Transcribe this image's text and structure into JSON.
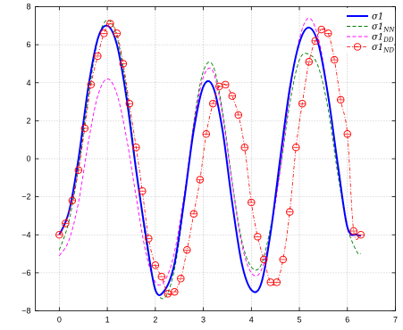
{
  "chart_data": {
    "type": "line",
    "xlim": [
      -0.5,
      7
    ],
    "ylim": [
      -8,
      8
    ],
    "x_ticks": [
      "0",
      "1",
      "2",
      "3",
      "4",
      "5",
      "6",
      "7"
    ],
    "y_ticks": [
      "-8",
      "-6",
      "-4",
      "-2",
      "0",
      "2",
      "4",
      "6",
      "8"
    ],
    "grid": true,
    "legend_position": "top-right",
    "series": [
      {
        "name_base": "σ1",
        "name_sub": "",
        "color": "#0000ff",
        "style": "solid",
        "x": [
          0,
          0.2,
          0.4,
          0.6,
          0.8,
          1.0,
          1.2,
          1.4,
          1.6,
          1.8,
          2.0,
          2.2,
          2.4,
          2.6,
          2.8,
          3.0,
          3.2,
          3.4,
          3.6,
          3.8,
          4.0,
          4.2,
          4.4,
          4.6,
          4.8,
          5.0,
          5.2,
          5.4,
          5.6,
          5.8,
          6.0,
          6.2,
          6.28
        ],
        "y": [
          -4.0,
          -2.8,
          0.0,
          3.7,
          6.3,
          7.0,
          6.0,
          3.2,
          -0.6,
          -4.0,
          -6.9,
          -6.9,
          -5.5,
          -2.2,
          1.5,
          3.8,
          3.8,
          1.5,
          -2.3,
          -5.5,
          -6.9,
          -6.6,
          -3.9,
          0.0,
          3.7,
          6.1,
          6.9,
          6.0,
          3.3,
          -0.3,
          -3.6,
          -4.0,
          -4.05
        ]
      },
      {
        "name_base": "σ1",
        "name_sub": "NN",
        "color": "#007f00",
        "style": "dashed",
        "x": [
          0,
          0.2,
          0.4,
          0.6,
          0.8,
          1.0,
          1.2,
          1.4,
          1.6,
          1.8,
          2.0,
          2.2,
          2.4,
          2.6,
          2.8,
          3.0,
          3.2,
          3.4,
          3.6,
          3.8,
          4.0,
          4.2,
          4.4,
          4.6,
          4.8,
          5.0,
          5.2,
          5.4,
          5.6,
          5.8,
          6.0,
          6.2,
          6.28
        ],
        "y": [
          -4.8,
          -3.3,
          -0.5,
          3.2,
          6.2,
          7.3,
          6.4,
          3.6,
          -0.4,
          -4.3,
          -6.8,
          -7.3,
          -5.8,
          -2.4,
          1.9,
          4.6,
          4.9,
          2.5,
          -1.2,
          -4.3,
          -5.7,
          -5.6,
          -3.6,
          -0.6,
          2.9,
          5.2,
          5.5,
          4.8,
          2.6,
          -0.8,
          -3.6,
          -4.9,
          -5.0
        ]
      },
      {
        "name_base": "σ1",
        "name_sub": "DD",
        "color": "#ff00ff",
        "style": "dashed",
        "x": [
          0,
          0.2,
          0.4,
          0.6,
          0.8,
          1.0,
          1.2,
          1.4,
          1.6,
          1.8,
          2.0,
          2.2,
          2.4,
          2.6,
          2.8,
          3.0,
          3.2,
          3.4,
          3.6,
          3.8,
          4.0,
          4.2,
          4.4,
          4.6,
          4.8,
          5.0,
          5.2,
          5.4,
          5.6,
          5.8,
          6.0,
          6.2,
          6.28
        ],
        "y": [
          -5.1,
          -4.3,
          -2.3,
          0.8,
          3.3,
          4.2,
          3.4,
          1.1,
          -2.0,
          -4.9,
          -6.5,
          -6.4,
          -4.9,
          -1.9,
          1.8,
          4.3,
          4.6,
          2.3,
          -1.3,
          -4.5,
          -6.0,
          -5.9,
          -3.9,
          -0.6,
          3.4,
          6.3,
          7.4,
          6.3,
          3.4,
          -0.4,
          -3.7,
          -4.0,
          -4.1
        ]
      },
      {
        "name_base": "σ1",
        "name_sub": "ND",
        "color": "#ff0000",
        "style": "dashdot-markers",
        "x": [
          0,
          0.13,
          0.27,
          0.4,
          0.53,
          0.66,
          0.8,
          0.93,
          1.06,
          1.2,
          1.33,
          1.46,
          1.6,
          1.73,
          1.86,
          2.0,
          2.13,
          2.26,
          2.4,
          2.53,
          2.66,
          2.8,
          2.93,
          3.06,
          3.2,
          3.33,
          3.46,
          3.6,
          3.73,
          3.86,
          4.0,
          4.13,
          4.26,
          4.4,
          4.53,
          4.66,
          4.8,
          4.93,
          5.06,
          5.2,
          5.33,
          5.46,
          5.6,
          5.73,
          5.86,
          6.0,
          6.13,
          6.28
        ],
        "y": [
          -4.0,
          -3.4,
          -2.2,
          -0.6,
          1.6,
          3.9,
          5.4,
          6.6,
          7.1,
          6.6,
          5.0,
          2.9,
          0.6,
          -1.7,
          -4.2,
          -5.6,
          -6.2,
          -7.1,
          -7.0,
          -6.3,
          -4.8,
          -2.9,
          -1.1,
          1.3,
          2.9,
          3.8,
          3.9,
          3.3,
          2.3,
          0.6,
          -2.3,
          -4.1,
          -5.3,
          -6.5,
          -6.5,
          -5.3,
          -2.8,
          0.6,
          2.9,
          5.1,
          6.2,
          6.8,
          6.6,
          5.2,
          3.1,
          1.3,
          -3.8,
          -4.0
        ]
      }
    ]
  }
}
